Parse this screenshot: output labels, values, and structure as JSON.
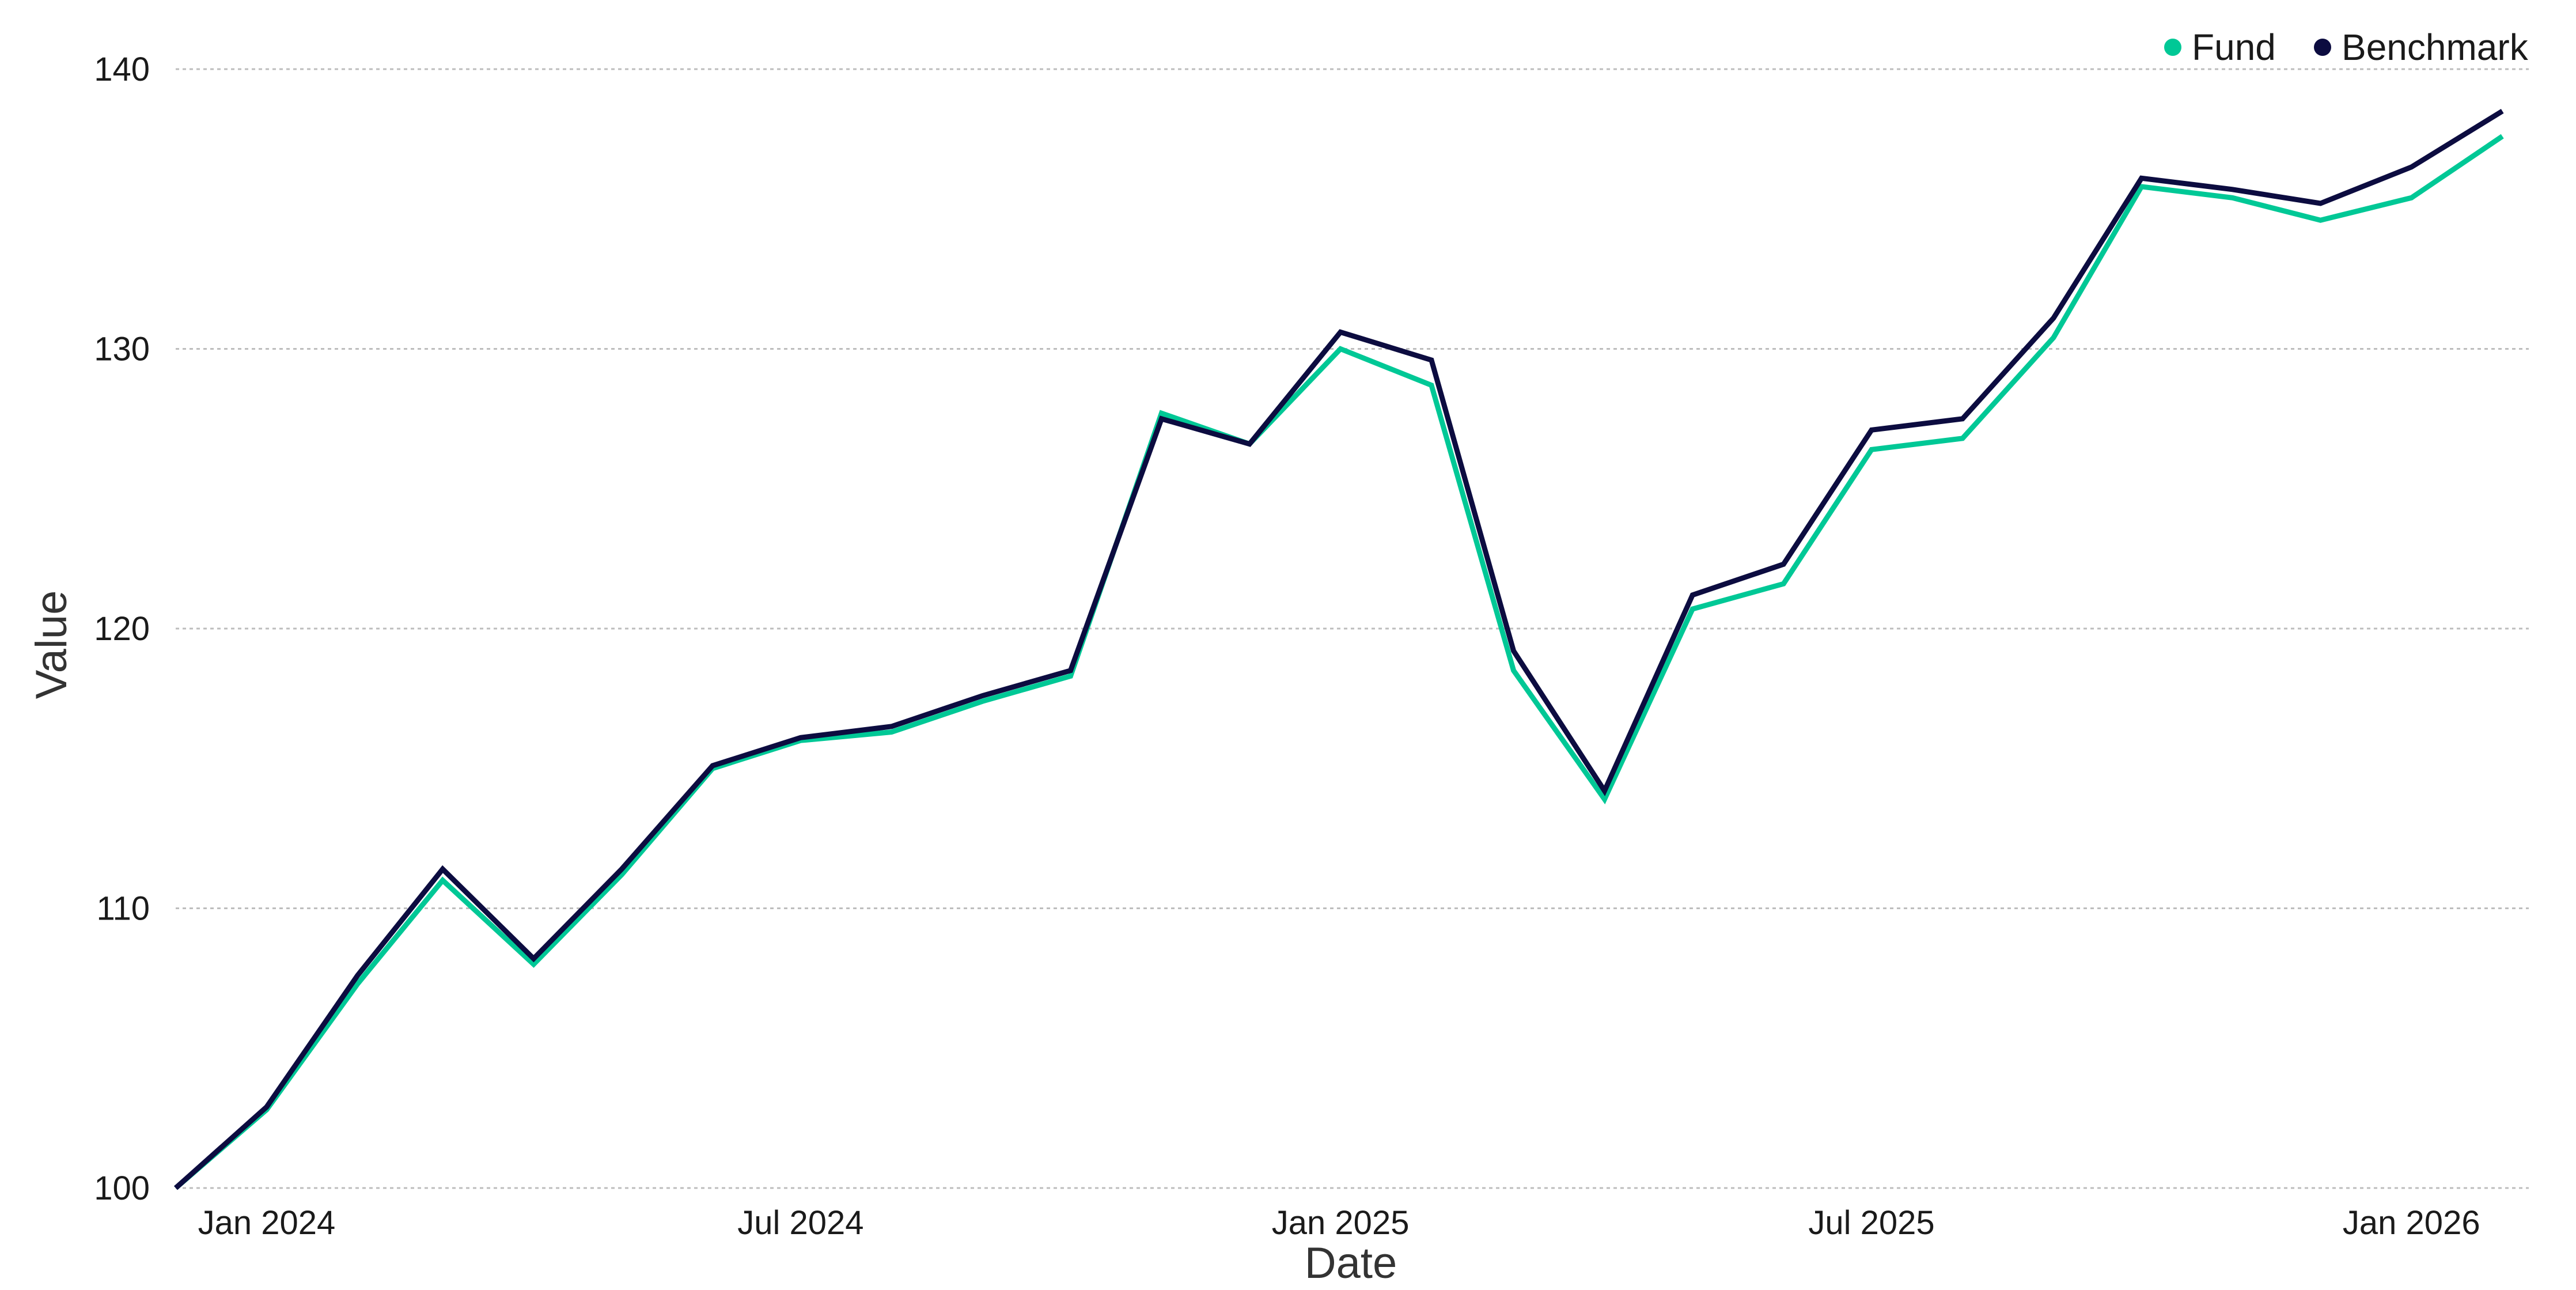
{
  "chart_data": {
    "type": "line",
    "title": "",
    "xlabel": "Date",
    "ylabel": "Value",
    "ylim": [
      100,
      140
    ],
    "yticks": [
      100,
      110,
      120,
      130,
      140
    ],
    "xticks": [
      "Jan 2024",
      "Jul 2024",
      "Jan 2025",
      "Jul 2025",
      "Jan 2026"
    ],
    "xlim": [
      "2023-12-01",
      "2026-02-10"
    ],
    "grid": "horizontal",
    "legend_position": "top-right",
    "x": [
      "2023-12-01",
      "2024-01-01",
      "2024-02-01",
      "2024-03-01",
      "2024-04-01",
      "2024-05-01",
      "2024-06-01",
      "2024-07-01",
      "2024-08-01",
      "2024-09-01",
      "2024-10-01",
      "2024-11-01",
      "2024-12-01",
      "2025-01-01",
      "2025-02-01",
      "2025-03-01",
      "2025-04-01",
      "2025-05-01",
      "2025-06-01",
      "2025-07-01",
      "2025-08-01",
      "2025-09-01",
      "2025-10-01",
      "2025-11-01",
      "2025-12-01",
      "2026-01-01",
      "2026-02-01"
    ],
    "series": [
      {
        "name": "Fund",
        "color": "#00c896",
        "values": [
          100.0,
          102.8,
          107.3,
          111.0,
          108.0,
          111.2,
          115.0,
          116.0,
          116.3,
          117.4,
          118.3,
          127.7,
          126.6,
          130.0,
          128.7,
          118.5,
          113.9,
          120.7,
          121.6,
          126.4,
          126.8,
          130.4,
          135.8,
          135.4,
          134.6,
          135.4,
          137.6
        ]
      },
      {
        "name": "Benchmark",
        "color": "#0c0c40",
        "values": [
          100.0,
          102.9,
          107.6,
          111.4,
          108.2,
          111.4,
          115.1,
          116.1,
          116.5,
          117.6,
          118.5,
          127.5,
          126.6,
          130.6,
          129.6,
          119.2,
          114.2,
          121.2,
          122.3,
          127.1,
          127.5,
          131.1,
          136.1,
          135.7,
          135.2,
          136.5,
          138.5
        ]
      }
    ]
  }
}
